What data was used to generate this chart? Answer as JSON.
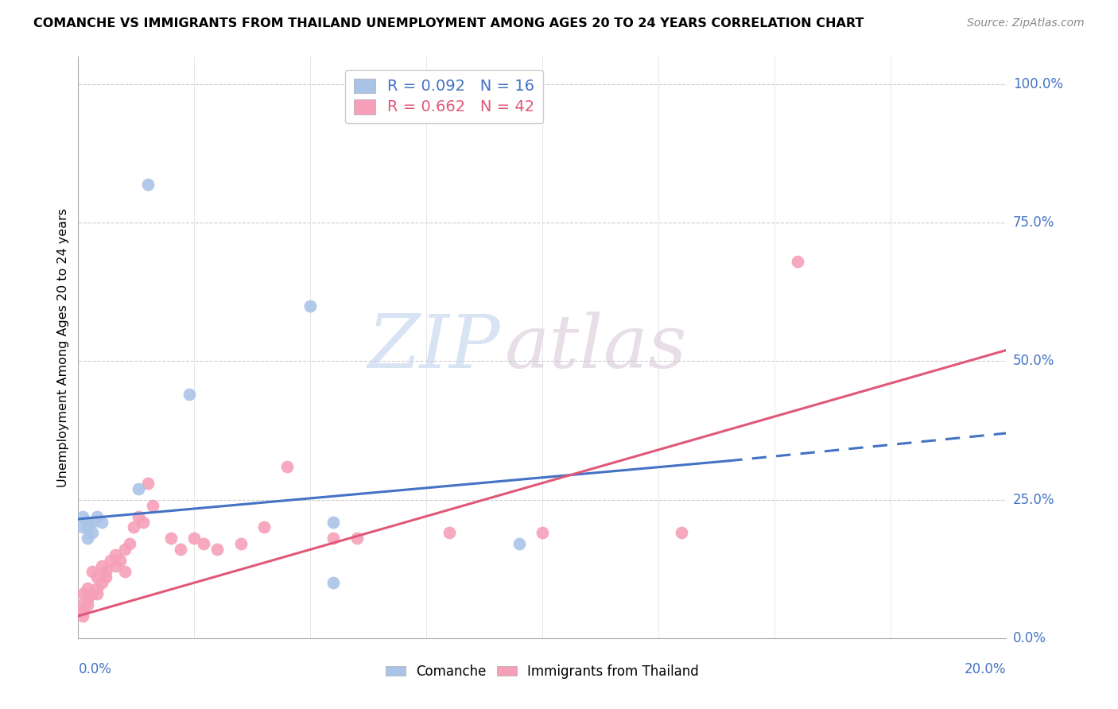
{
  "title": "COMANCHE VS IMMIGRANTS FROM THAILAND UNEMPLOYMENT AMONG AGES 20 TO 24 YEARS CORRELATION CHART",
  "source": "Source: ZipAtlas.com",
  "ylabel": "Unemployment Among Ages 20 to 24 years",
  "legend_entry1": "R = 0.092   N = 16",
  "legend_entry2": "R = 0.662   N = 42",
  "comanche_color": "#aac4e8",
  "thailand_color": "#f5a0b8",
  "comanche_line_color": "#4472c4",
  "thailand_line_color": "#e05878",
  "watermark_zip": "ZIP",
  "watermark_atlas": "atlas",
  "comanche_x": [
    0.001,
    0.001,
    0.002,
    0.002,
    0.002,
    0.003,
    0.003,
    0.004,
    0.005,
    0.013,
    0.024,
    0.055,
    0.055,
    0.095,
    0.015,
    0.05
  ],
  "comanche_y": [
    0.22,
    0.2,
    0.2,
    0.21,
    0.18,
    0.21,
    0.19,
    0.22,
    0.21,
    0.27,
    0.44,
    0.21,
    0.1,
    0.17,
    0.82,
    0.6
  ],
  "thailand_x": [
    0.001,
    0.001,
    0.001,
    0.001,
    0.002,
    0.002,
    0.002,
    0.003,
    0.003,
    0.004,
    0.004,
    0.004,
    0.005,
    0.005,
    0.006,
    0.006,
    0.007,
    0.008,
    0.008,
    0.009,
    0.01,
    0.01,
    0.011,
    0.012,
    0.013,
    0.014,
    0.015,
    0.016,
    0.02,
    0.022,
    0.025,
    0.027,
    0.03,
    0.035,
    0.04,
    0.045,
    0.055,
    0.06,
    0.08,
    0.1,
    0.13,
    0.155
  ],
  "thailand_y": [
    0.04,
    0.05,
    0.06,
    0.08,
    0.07,
    0.06,
    0.09,
    0.08,
    0.12,
    0.09,
    0.11,
    0.08,
    0.1,
    0.13,
    0.11,
    0.12,
    0.14,
    0.13,
    0.15,
    0.14,
    0.12,
    0.16,
    0.17,
    0.2,
    0.22,
    0.21,
    0.28,
    0.24,
    0.18,
    0.16,
    0.18,
    0.17,
    0.16,
    0.17,
    0.2,
    0.31,
    0.18,
    0.18,
    0.19,
    0.19,
    0.19,
    0.68
  ],
  "comanche_line_x0": 0.0,
  "comanche_line_y0": 0.215,
  "comanche_line_x1": 0.14,
  "comanche_line_y1": 0.32,
  "comanche_line_x2": 0.2,
  "comanche_line_y2": 0.37,
  "thailand_line_x0": 0.0,
  "thailand_line_y0": 0.04,
  "thailand_line_x1": 0.2,
  "thailand_line_y1": 0.52,
  "xlim": [
    0.0,
    0.2
  ],
  "ylim": [
    0.0,
    1.05
  ],
  "figsize": [
    14.06,
    8.92
  ],
  "dpi": 100
}
